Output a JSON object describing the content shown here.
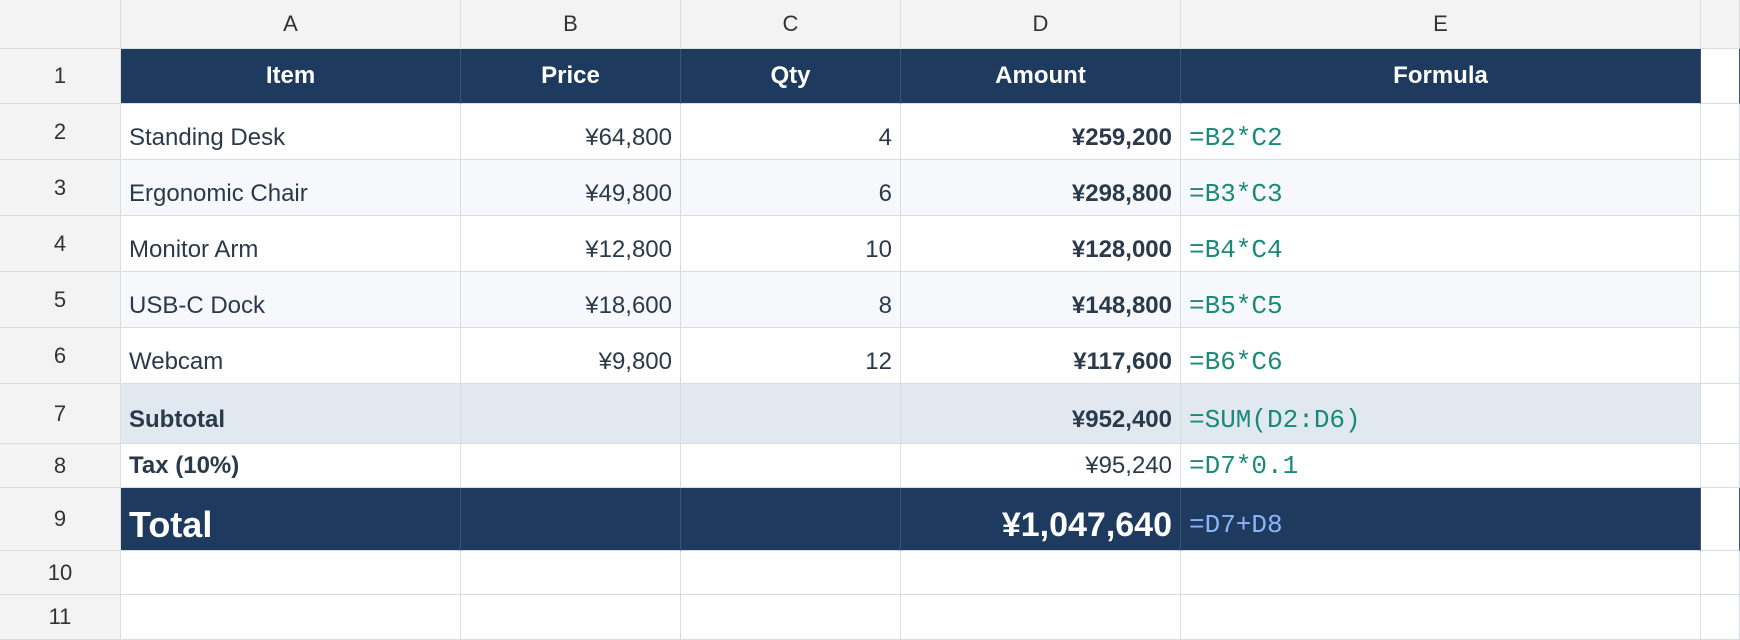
{
  "column_headers": [
    "A",
    "B",
    "C",
    "D",
    "E"
  ],
  "row_numbers": [
    1,
    2,
    3,
    4,
    5,
    6,
    7,
    8,
    9,
    10,
    11
  ],
  "table": {
    "rows": [
      {
        "A": "Item",
        "B": "Price",
        "C": "Qty",
        "D": "Amount",
        "E": "Formula"
      },
      {
        "A": "Standing Desk",
        "B": "¥64,800",
        "C": "4",
        "D": "¥259,200",
        "E": "=B2*C2"
      },
      {
        "A": "Ergonomic Chair",
        "B": "¥49,800",
        "C": "6",
        "D": "¥298,800",
        "E": "=B3*C3"
      },
      {
        "A": "Monitor Arm",
        "B": "¥12,800",
        "C": "10",
        "D": "¥128,000",
        "E": "=B4*C4"
      },
      {
        "A": "USB-C Dock",
        "B": "¥18,600",
        "C": "8",
        "D": "¥148,800",
        "E": "=B5*C5"
      },
      {
        "A": "Webcam",
        "B": "¥9,800",
        "C": "12",
        "D": "¥117,600",
        "E": "=B6*C6"
      },
      {
        "A": "Subtotal",
        "D": "¥952,400",
        "E": "=SUM(D2:D6)"
      },
      {
        "A": "Tax (10%)",
        "D": "¥95,240",
        "E": "=D7*0.1"
      },
      {
        "A": "Total",
        "D": "¥1,047,640",
        "E": "=D7+D8"
      }
    ]
  }
}
